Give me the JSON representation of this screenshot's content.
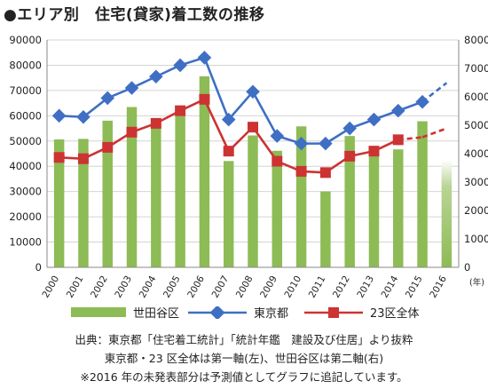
{
  "title": "●エリア別　住宅(貸家)着工数の推移",
  "chart_data": {
    "type": "bar+line",
    "categories": [
      "2000",
      "2001",
      "2002",
      "2003",
      "2004",
      "2005",
      "2006",
      "2007",
      "2008",
      "2009",
      "2010",
      "2011",
      "2012",
      "2013",
      "2014",
      "2015",
      "2016"
    ],
    "x_unit": "(年)",
    "left_axis": {
      "min": 0,
      "max": 90000,
      "step": 10000,
      "ticks": [
        "0",
        "10000",
        "20000",
        "30000",
        "40000",
        "50000",
        "60000",
        "70000",
        "80000",
        "90000"
      ]
    },
    "right_axis": {
      "min": 0,
      "max": 8000,
      "step": 1000,
      "ticks": [
        "0",
        "1000",
        "2000",
        "3000",
        "4000",
        "5000",
        "6000",
        "7000",
        "8000"
      ]
    },
    "grid": true,
    "legend_position": "bottom",
    "series": [
      {
        "name": "世田谷区",
        "type": "bar",
        "axis": "right",
        "color": "#8dbb55",
        "values": [
          4500,
          4520,
          5160,
          5640,
          5000,
          5580,
          6720,
          3740,
          4640,
          4100,
          4960,
          2670,
          4620,
          4050,
          4150,
          5140,
          3780
        ],
        "estimated_from_index": 16
      },
      {
        "name": "東京都",
        "type": "line",
        "axis": "left",
        "color": "#3f6fc4",
        "marker": "diamond",
        "values": [
          60000,
          59500,
          67000,
          71000,
          75500,
          80000,
          83000,
          58500,
          69500,
          52000,
          49000,
          49000,
          55000,
          58500,
          62000,
          65500,
          73000
        ],
        "estimated_from_index": 16
      },
      {
        "name": "23区全体",
        "type": "line",
        "axis": "left",
        "color": "#cc3333",
        "marker": "square",
        "values": [
          43500,
          43000,
          47500,
          53500,
          57000,
          62000,
          66500,
          46000,
          55500,
          42000,
          38000,
          37500,
          44000,
          46000,
          50500,
          51500,
          55000
        ],
        "estimated_from_index": 15
      }
    ]
  },
  "notes": [
    "出典：東京都「住宅着工統計」「統計年鑑　建設及び住居」より抜粋",
    "東京都・23 区全体は第一軸(左)、世田谷区は第二軸(右)",
    "※2016 年の未発表部分は予測値としてグラフに追記しています。"
  ]
}
